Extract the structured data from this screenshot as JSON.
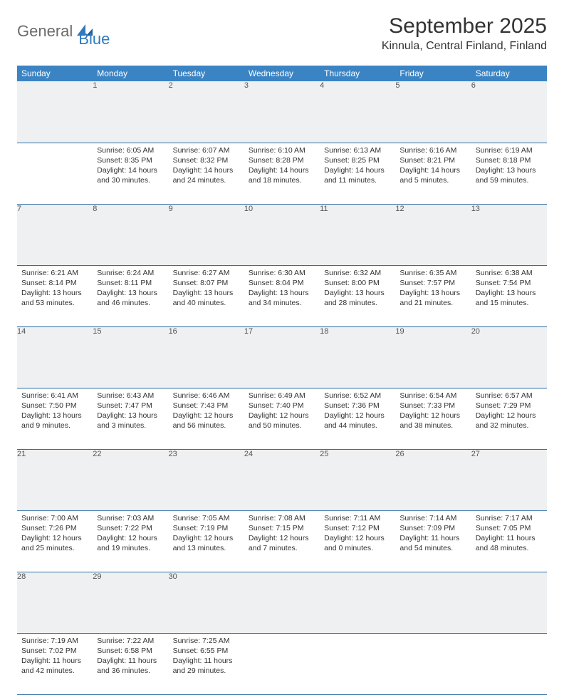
{
  "brand": {
    "part1": "General",
    "part2": "Blue"
  },
  "title": "September 2025",
  "location": "Kinnula, Central Finland, Finland",
  "colors": {
    "header_bg": "#3b84c4",
    "header_text": "#ffffff",
    "daynum_bg": "#eef0f1",
    "row_border": "#2f6fa8",
    "brand_gray": "#6b6b6b",
    "brand_blue": "#2f7bbf"
  },
  "weekdays": [
    "Sunday",
    "Monday",
    "Tuesday",
    "Wednesday",
    "Thursday",
    "Friday",
    "Saturday"
  ],
  "first_weekday_index": 1,
  "days": [
    {
      "n": 1,
      "sunrise": "6:05 AM",
      "sunset": "8:35 PM",
      "daylight": "14 hours and 30 minutes."
    },
    {
      "n": 2,
      "sunrise": "6:07 AM",
      "sunset": "8:32 PM",
      "daylight": "14 hours and 24 minutes."
    },
    {
      "n": 3,
      "sunrise": "6:10 AM",
      "sunset": "8:28 PM",
      "daylight": "14 hours and 18 minutes."
    },
    {
      "n": 4,
      "sunrise": "6:13 AM",
      "sunset": "8:25 PM",
      "daylight": "14 hours and 11 minutes."
    },
    {
      "n": 5,
      "sunrise": "6:16 AM",
      "sunset": "8:21 PM",
      "daylight": "14 hours and 5 minutes."
    },
    {
      "n": 6,
      "sunrise": "6:19 AM",
      "sunset": "8:18 PM",
      "daylight": "13 hours and 59 minutes."
    },
    {
      "n": 7,
      "sunrise": "6:21 AM",
      "sunset": "8:14 PM",
      "daylight": "13 hours and 53 minutes."
    },
    {
      "n": 8,
      "sunrise": "6:24 AM",
      "sunset": "8:11 PM",
      "daylight": "13 hours and 46 minutes."
    },
    {
      "n": 9,
      "sunrise": "6:27 AM",
      "sunset": "8:07 PM",
      "daylight": "13 hours and 40 minutes."
    },
    {
      "n": 10,
      "sunrise": "6:30 AM",
      "sunset": "8:04 PM",
      "daylight": "13 hours and 34 minutes."
    },
    {
      "n": 11,
      "sunrise": "6:32 AM",
      "sunset": "8:00 PM",
      "daylight": "13 hours and 28 minutes."
    },
    {
      "n": 12,
      "sunrise": "6:35 AM",
      "sunset": "7:57 PM",
      "daylight": "13 hours and 21 minutes."
    },
    {
      "n": 13,
      "sunrise": "6:38 AM",
      "sunset": "7:54 PM",
      "daylight": "13 hours and 15 minutes."
    },
    {
      "n": 14,
      "sunrise": "6:41 AM",
      "sunset": "7:50 PM",
      "daylight": "13 hours and 9 minutes."
    },
    {
      "n": 15,
      "sunrise": "6:43 AM",
      "sunset": "7:47 PM",
      "daylight": "13 hours and 3 minutes."
    },
    {
      "n": 16,
      "sunrise": "6:46 AM",
      "sunset": "7:43 PM",
      "daylight": "12 hours and 56 minutes."
    },
    {
      "n": 17,
      "sunrise": "6:49 AM",
      "sunset": "7:40 PM",
      "daylight": "12 hours and 50 minutes."
    },
    {
      "n": 18,
      "sunrise": "6:52 AM",
      "sunset": "7:36 PM",
      "daylight": "12 hours and 44 minutes."
    },
    {
      "n": 19,
      "sunrise": "6:54 AM",
      "sunset": "7:33 PM",
      "daylight": "12 hours and 38 minutes."
    },
    {
      "n": 20,
      "sunrise": "6:57 AM",
      "sunset": "7:29 PM",
      "daylight": "12 hours and 32 minutes."
    },
    {
      "n": 21,
      "sunrise": "7:00 AM",
      "sunset": "7:26 PM",
      "daylight": "12 hours and 25 minutes."
    },
    {
      "n": 22,
      "sunrise": "7:03 AM",
      "sunset": "7:22 PM",
      "daylight": "12 hours and 19 minutes."
    },
    {
      "n": 23,
      "sunrise": "7:05 AM",
      "sunset": "7:19 PM",
      "daylight": "12 hours and 13 minutes."
    },
    {
      "n": 24,
      "sunrise": "7:08 AM",
      "sunset": "7:15 PM",
      "daylight": "12 hours and 7 minutes."
    },
    {
      "n": 25,
      "sunrise": "7:11 AM",
      "sunset": "7:12 PM",
      "daylight": "12 hours and 0 minutes."
    },
    {
      "n": 26,
      "sunrise": "7:14 AM",
      "sunset": "7:09 PM",
      "daylight": "11 hours and 54 minutes."
    },
    {
      "n": 27,
      "sunrise": "7:17 AM",
      "sunset": "7:05 PM",
      "daylight": "11 hours and 48 minutes."
    },
    {
      "n": 28,
      "sunrise": "7:19 AM",
      "sunset": "7:02 PM",
      "daylight": "11 hours and 42 minutes."
    },
    {
      "n": 29,
      "sunrise": "7:22 AM",
      "sunset": "6:58 PM",
      "daylight": "11 hours and 36 minutes."
    },
    {
      "n": 30,
      "sunrise": "7:25 AM",
      "sunset": "6:55 PM",
      "daylight": "11 hours and 29 minutes."
    }
  ],
  "labels": {
    "sunrise": "Sunrise:",
    "sunset": "Sunset:",
    "daylight": "Daylight:"
  }
}
